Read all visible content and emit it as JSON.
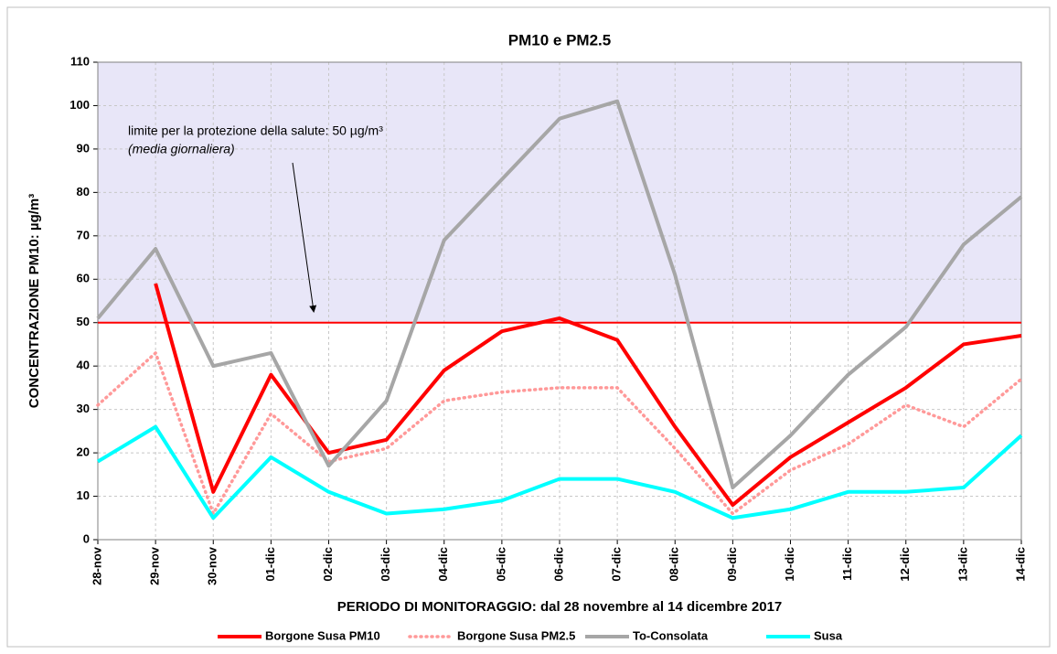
{
  "chart_data": {
    "type": "line",
    "title": "PM10 e PM2.5",
    "y_label": "CONCENTRAZIONE PM10: µg/m³",
    "x_label": "PERIODO DI MONITORAGGIO:  dal 28 novembre al 14 dicembre 2017",
    "annotation": "limite per la protezione della salute: 50 µg/m³",
    "annotation_note": "(media giornaliera)",
    "limit": 50,
    "limit_color": "#ff0000",
    "shade_color": "#e8e6f8",
    "categories": [
      "28-nov",
      "29-nov",
      "30-nov",
      "01-dic",
      "02-dic",
      "03-dic",
      "04-dic",
      "05-dic",
      "06-dic",
      "07-dic",
      "08-dic",
      "09-dic",
      "10-dic",
      "11-dic",
      "12-dic",
      "13-dic",
      "14-dic"
    ],
    "series": [
      {
        "name": "Borgone Susa PM10",
        "color": "#ff0000",
        "dash": false,
        "values": [
          null,
          59,
          11,
          38,
          20,
          23,
          39,
          48,
          51,
          46,
          26,
          8,
          19,
          27,
          35,
          45,
          47
        ]
      },
      {
        "name": "Borgone Susa PM2.5",
        "color": "#ff9999",
        "dash": true,
        "values": [
          31,
          43,
          6,
          29,
          18,
          21,
          32,
          34,
          35,
          35,
          21,
          6,
          16,
          22,
          31,
          26,
          37
        ]
      },
      {
        "name": "To-Consolata",
        "color": "#a6a6a6",
        "dash": false,
        "values": [
          51,
          67,
          40,
          43,
          17,
          32,
          69,
          83,
          97,
          101,
          61,
          12,
          24,
          38,
          49,
          68,
          79
        ]
      },
      {
        "name": "Susa",
        "color": "#00ffff",
        "dash": false,
        "values": [
          18,
          26,
          5,
          19,
          11,
          6,
          7,
          9,
          14,
          14,
          11,
          5,
          7,
          11,
          11,
          12,
          24
        ]
      }
    ],
    "ylim": [
      0,
      110
    ],
    "yticks": [
      0,
      10,
      20,
      30,
      40,
      50,
      60,
      70,
      80,
      90,
      100,
      110
    ],
    "grid": true,
    "legend": "bottom"
  }
}
